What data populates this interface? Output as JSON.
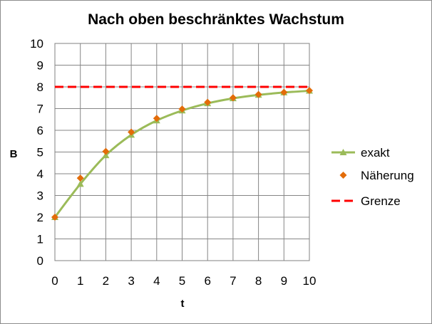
{
  "chart_data": {
    "type": "line",
    "title": "Nach oben beschränktes Wachstum",
    "xlabel": "t",
    "ylabel": "B",
    "xlim": [
      0,
      10
    ],
    "ylim": [
      0,
      10
    ],
    "x_ticks": [
      0,
      1,
      2,
      3,
      4,
      5,
      6,
      7,
      8,
      9,
      10
    ],
    "y_ticks": [
      0,
      1,
      2,
      3,
      4,
      5,
      6,
      7,
      8,
      9,
      10
    ],
    "grid": true,
    "legend_position": "right",
    "x": [
      0,
      1,
      2,
      3,
      4,
      5,
      6,
      7,
      8,
      9,
      10
    ],
    "series": [
      {
        "name": "exakt",
        "style": "smooth-line-triangle-markers",
        "color": "#9bbb59",
        "values": [
          2.0,
          3.53,
          4.85,
          5.79,
          6.45,
          6.91,
          7.24,
          7.47,
          7.63,
          7.74,
          7.82
        ]
      },
      {
        "name": "Näherung",
        "style": "diamond-markers",
        "color": "#e36c09",
        "values": [
          2.0,
          3.8,
          5.03,
          5.92,
          6.55,
          6.98,
          7.29,
          7.5,
          7.65,
          7.75,
          7.83
        ]
      },
      {
        "name": "Grenze",
        "style": "dashed-line",
        "color": "#ff0000",
        "values": [
          8,
          8,
          8,
          8,
          8,
          8,
          8,
          8,
          8,
          8,
          8
        ]
      }
    ]
  }
}
